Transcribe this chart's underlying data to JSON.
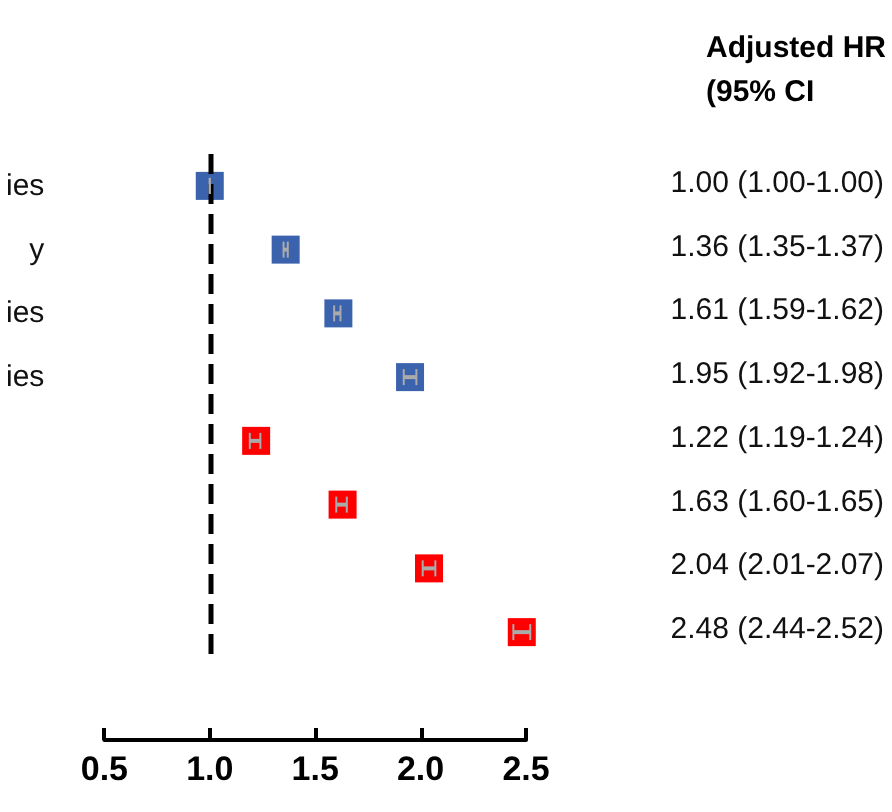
{
  "chart_data": {
    "type": "scatter",
    "orientation": "horizontal",
    "title": "Adjusted HR\n(95% CI",
    "categories": [
      "ies",
      "y",
      "ies",
      "ies",
      null,
      null,
      null,
      null
    ],
    "series": [
      {
        "colors": [
          "#3a62ad",
          "#3a62ad",
          "#3a62ad",
          "#3a62ad",
          "#ff0000",
          "#ff0000",
          "#ff0000",
          "#ff0000"
        ],
        "values": [
          1.0,
          1.36,
          1.61,
          1.95,
          1.22,
          1.63,
          2.04,
          2.48
        ],
        "errors": [
          [
            1.0,
            1.0
          ],
          [
            1.35,
            1.37
          ],
          [
            1.59,
            1.62
          ],
          [
            1.92,
            1.98
          ],
          [
            1.19,
            1.24
          ],
          [
            1.6,
            1.65
          ],
          [
            2.01,
            2.07
          ],
          [
            2.44,
            2.52
          ]
        ],
        "value_labels": [
          "1.00 (1.00-1.00)",
          "1.36 (1.35-1.37)",
          "1.61 (1.59-1.62)",
          "1.95 (1.92-1.98)",
          "1.22 (1.19-1.24)",
          "1.63 (1.60-1.65)",
          "2.04 (2.01-2.07)",
          "2.48 (2.44-2.52)"
        ]
      }
    ],
    "xlim": [
      0.5,
      2.5
    ],
    "xticks": [
      0.5,
      {
        "value": 1,
        "label": "1.0"
      },
      1.5,
      {
        "value": 2,
        "label": "2.0"
      },
      2.5
    ],
    "ref_lines": [
      {
        "axis": "x",
        "value": 1,
        "line_style": "dashed",
        "color": "#000000"
      }
    ],
    "grid": false,
    "marker": "square"
  }
}
